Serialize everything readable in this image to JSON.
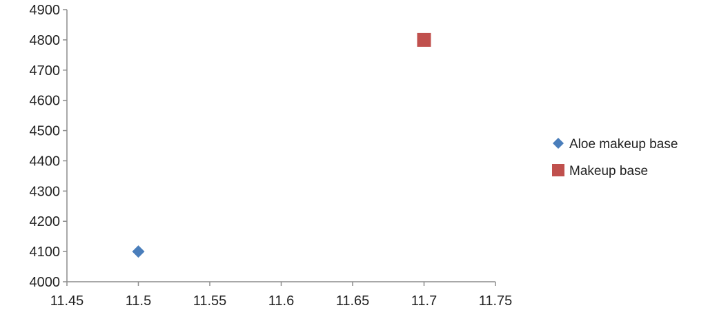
{
  "chart_data": {
    "type": "scatter",
    "title": "",
    "xlabel": "",
    "ylabel": "",
    "xlim": [
      11.45,
      11.75
    ],
    "ylim": [
      4000,
      4900
    ],
    "x_ticks": [
      11.45,
      11.5,
      11.55,
      11.6,
      11.65,
      11.7,
      11.75
    ],
    "x_tick_labels": [
      "11.45",
      "11.5",
      "11.55",
      "11.6",
      "11.65",
      "11.7",
      "11.75"
    ],
    "y_ticks": [
      4000,
      4100,
      4200,
      4300,
      4400,
      4500,
      4600,
      4700,
      4800,
      4900
    ],
    "y_tick_labels": [
      "4000",
      "4100",
      "4200",
      "4300",
      "4400",
      "4500",
      "4600",
      "4700",
      "4800",
      "4900"
    ],
    "grid": false,
    "legend_position": "right",
    "series": [
      {
        "name": "Aloe makeup base",
        "marker": "diamond",
        "color": "#4a7ebb",
        "points": [
          {
            "x": 11.5,
            "y": 4100
          }
        ]
      },
      {
        "name": "Makeup base",
        "marker": "square",
        "color": "#c0504d",
        "points": [
          {
            "x": 11.7,
            "y": 4800
          }
        ]
      }
    ]
  }
}
